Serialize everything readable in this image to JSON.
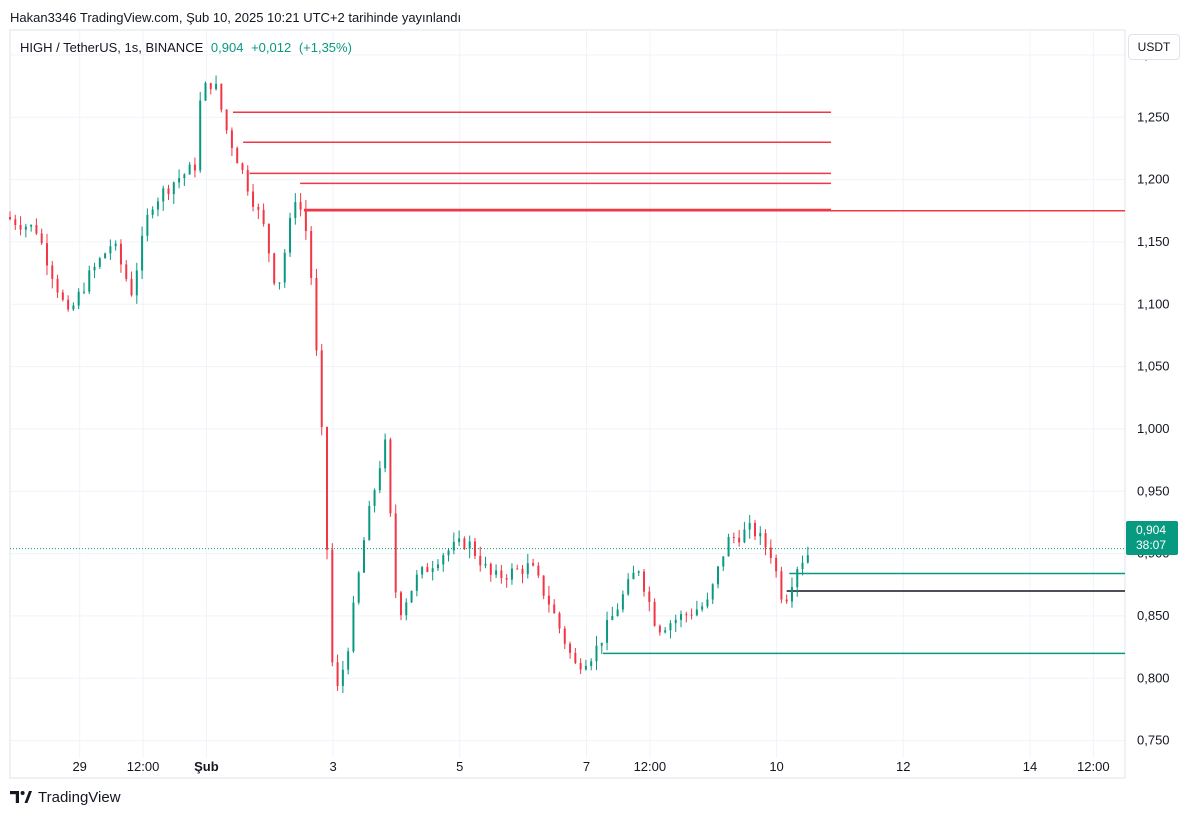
{
  "attribution": "Hakan3346 TradingView.com, Şub 10, 2025 10:21 UTC+2 tarihinde yayınlandı",
  "symbol": {
    "name": "HIGH / TetherUS, 1s, BINANCE",
    "price": "0,904",
    "change": "+0,012",
    "change_pct": "(+1,35%)"
  },
  "currency_label": "USDT",
  "price_label": {
    "price": "0,904",
    "countdown": "38:07"
  },
  "brand": "TradingView",
  "colors": {
    "up": "#089981",
    "down": "#f23645",
    "grid": "#f0f3fa",
    "text": "#131722"
  },
  "chart_data": {
    "type": "candlestick",
    "ylim": [
      0.72,
      1.32
    ],
    "y_ticks": [
      "1,300",
      "1,250",
      "1,200",
      "1,150",
      "1,100",
      "1,050",
      "1,000",
      "0,950",
      "0,900",
      "0,850",
      "0,800",
      "0,750"
    ],
    "y_tick_values": [
      1.3,
      1.25,
      1.2,
      1.15,
      1.1,
      1.05,
      1.0,
      0.95,
      0.9,
      0.85,
      0.8,
      0.75
    ],
    "x_ticks": [
      "29",
      "12:00",
      "Şub",
      "3",
      "5",
      "7",
      "12:00",
      "10",
      "12",
      "14",
      "12:00"
    ],
    "x_tick_days": [
      0,
      0.5,
      1,
      2,
      3,
      4,
      4.5,
      5.5,
      6.5,
      7.5,
      8
    ],
    "days_span": [
      -0.55,
      8.25
    ],
    "last_price": 0.904,
    "horizontal_levels": [
      {
        "price": 1.254,
        "color": "#f23645",
        "start_day": 1.21,
        "end_day": 5.93
      },
      {
        "price": 1.23,
        "color": "#f23645",
        "start_day": 1.29,
        "end_day": 5.93
      },
      {
        "price": 1.205,
        "color": "#f23645",
        "start_day": 1.34,
        "end_day": 5.93
      },
      {
        "price": 1.197,
        "color": "#f23645",
        "start_day": 1.74,
        "end_day": 5.93
      },
      {
        "price": 1.176,
        "color": "#f23645",
        "start_day": 1.77,
        "end_day": 5.93
      },
      {
        "price": 1.175,
        "color": "#f23645",
        "start_day": 1.77,
        "end_day": 8.25
      },
      {
        "price": 0.884,
        "color": "#089981",
        "start_day": 5.6,
        "end_day": 8.25
      },
      {
        "price": 0.87,
        "color": "#131722",
        "start_day": 5.58,
        "end_day": 8.25
      },
      {
        "price": 0.82,
        "color": "#089981",
        "start_day": 4.13,
        "end_day": 8.25
      }
    ],
    "anchors": [
      [
        -0.55,
        1.17
      ],
      [
        -0.3,
        1.16
      ],
      [
        -0.05,
        1.09
      ],
      [
        0.1,
        1.12
      ],
      [
        0.3,
        1.15
      ],
      [
        0.45,
        1.11
      ],
      [
        0.6,
        1.18
      ],
      [
        0.8,
        1.2
      ],
      [
        0.95,
        1.21
      ],
      [
        1.0,
        1.27
      ],
      [
        1.1,
        1.28
      ],
      [
        1.2,
        1.24
      ],
      [
        1.35,
        1.2
      ],
      [
        1.5,
        1.16
      ],
      [
        1.6,
        1.11
      ],
      [
        1.75,
        1.19
      ],
      [
        1.85,
        1.15
      ],
      [
        1.95,
        1.0
      ],
      [
        2.05,
        0.78
      ],
      [
        2.15,
        0.82
      ],
      [
        2.3,
        0.92
      ],
      [
        2.45,
        0.99
      ],
      [
        2.55,
        0.85
      ],
      [
        2.7,
        0.88
      ],
      [
        2.9,
        0.9
      ],
      [
        3.1,
        0.91
      ],
      [
        3.3,
        0.88
      ],
      [
        3.6,
        0.89
      ],
      [
        3.75,
        0.86
      ],
      [
        3.95,
        0.81
      ],
      [
        4.1,
        0.82
      ],
      [
        4.3,
        0.86
      ],
      [
        4.45,
        0.89
      ],
      [
        4.6,
        0.84
      ],
      [
        4.8,
        0.85
      ],
      [
        5.0,
        0.86
      ],
      [
        5.15,
        0.91
      ],
      [
        5.35,
        0.92
      ],
      [
        5.5,
        0.9
      ],
      [
        5.6,
        0.86
      ],
      [
        5.7,
        0.89
      ],
      [
        5.78,
        0.9
      ]
    ],
    "candle_interval_days": 0.0417
  }
}
